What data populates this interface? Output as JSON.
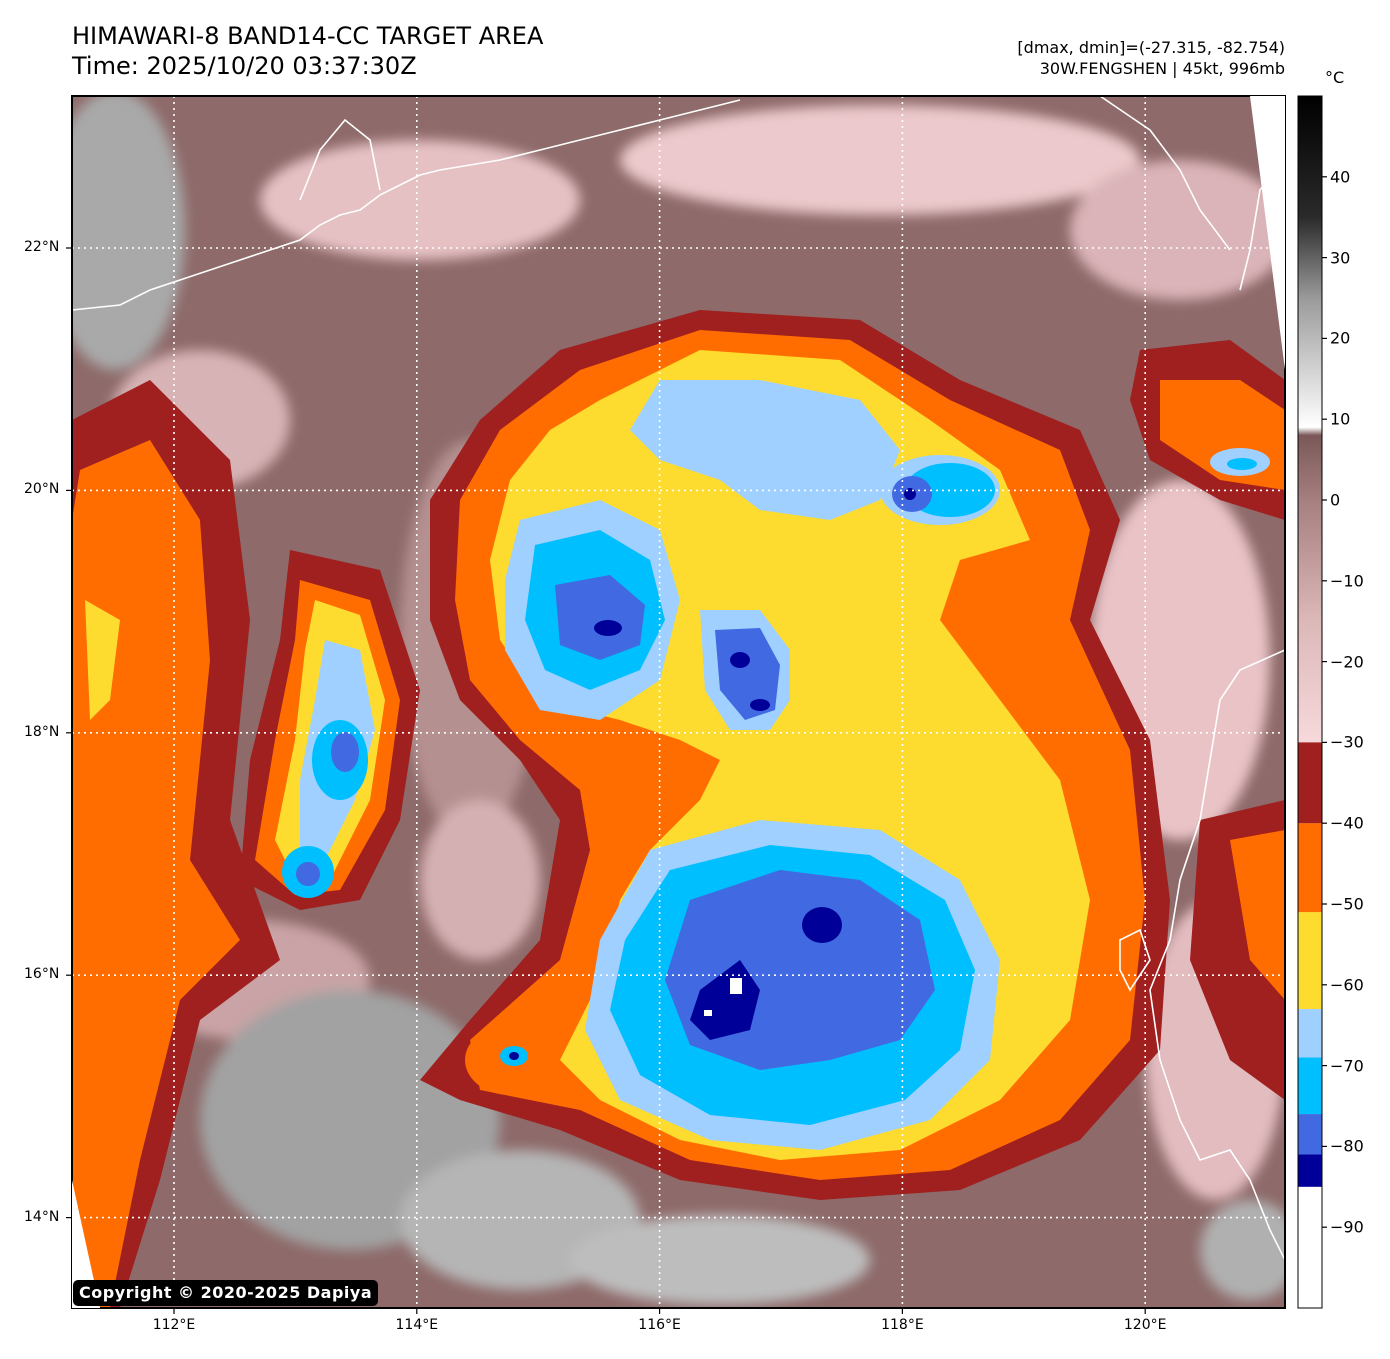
{
  "header": {
    "title_line1": "HIMAWARI-8 BAND14-CC TARGET AREA",
    "title_line2": "Time: 2025/10/20 03:37:30Z",
    "info_line1": "[dmax, dmin]=(-27.315, -82.754)",
    "info_line2": "30W.FENGSHEN | 45kt, 996mb"
  },
  "map": {
    "lat_labels": [
      "22°N",
      "20°N",
      "18°N",
      "16°N",
      "14°N"
    ],
    "lon_labels": [
      "112°E",
      "114°E",
      "116°E",
      "118°E",
      "120°E"
    ],
    "lat_values": [
      22,
      20,
      18,
      16,
      14
    ],
    "lon_values": [
      112,
      114,
      116,
      118,
      120
    ],
    "gridlines": true,
    "copyright": "Copyright © 2020-2025 Dapiya"
  },
  "colorbar": {
    "unit": "°C",
    "tick_labels": [
      "40",
      "30",
      "20",
      "10",
      "0",
      "−10",
      "−20",
      "−30",
      "−40",
      "−50",
      "−60",
      "−70",
      "−80",
      "−90"
    ],
    "tick_values": [
      40,
      30,
      20,
      10,
      0,
      -10,
      -20,
      -30,
      -40,
      -50,
      -60,
      -70,
      -80,
      -90
    ],
    "range": [
      -100,
      50
    ],
    "segments": [
      {
        "from": -100,
        "to": -85,
        "color": "#ffffff"
      },
      {
        "from": -85,
        "to": -81,
        "color": "#000099"
      },
      {
        "from": -81,
        "to": -76,
        "color": "#4169e1"
      },
      {
        "from": -76,
        "to": -69,
        "color": "#00bfff"
      },
      {
        "from": -69,
        "to": -63,
        "color": "#9fd0ff"
      },
      {
        "from": -63,
        "to": -51,
        "color": "#fddb2f"
      },
      {
        "from": -51,
        "to": -40,
        "color": "#ff6d00"
      },
      {
        "from": -40,
        "to": -30,
        "color": "#a01f1f"
      }
    ],
    "gradient_stops": [
      {
        "value": -30,
        "color": "#f7d9dc"
      },
      {
        "value": -15,
        "color": "#dcb8b8"
      },
      {
        "value": 0,
        "color": "#a67f7f"
      },
      {
        "value": 8,
        "color": "#7a5858"
      },
      {
        "value": 9,
        "color": "#ffffff"
      },
      {
        "value": 25,
        "color": "#9a9a9a"
      },
      {
        "value": 35,
        "color": "#2a2a2a"
      },
      {
        "value": 50,
        "color": "#000000"
      }
    ]
  },
  "colors": {
    "land_warm": "#8e6a6a",
    "cirrus_pink": "#ecc9cc",
    "cloud_gray": "#a9a9a9",
    "coastline": "#ffffff"
  }
}
